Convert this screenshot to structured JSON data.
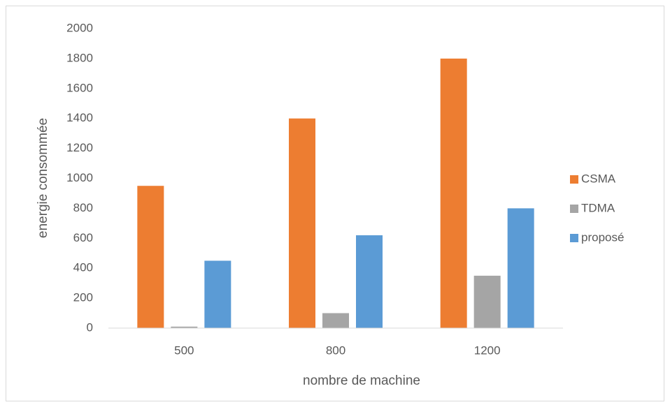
{
  "chart_data": {
    "type": "bar",
    "x_label": "nombre de machine",
    "y_label": "energie consommée",
    "categories": [
      "500",
      "800",
      "1200"
    ],
    "series": [
      {
        "name": "CSMA",
        "color": "#ed7d31",
        "values": [
          950,
          1400,
          1800
        ]
      },
      {
        "name": "TDMA",
        "color": "#a5a5a5",
        "values": [
          10,
          100,
          350
        ]
      },
      {
        "name": "proposé",
        "color": "#5b9bd5",
        "values": [
          450,
          620,
          800
        ]
      }
    ],
    "ylim": [
      0,
      2000
    ],
    "yticks": [
      0,
      200,
      400,
      600,
      800,
      1000,
      1200,
      1400,
      1600,
      1800,
      2000
    ],
    "grid": false,
    "legend": "right"
  }
}
